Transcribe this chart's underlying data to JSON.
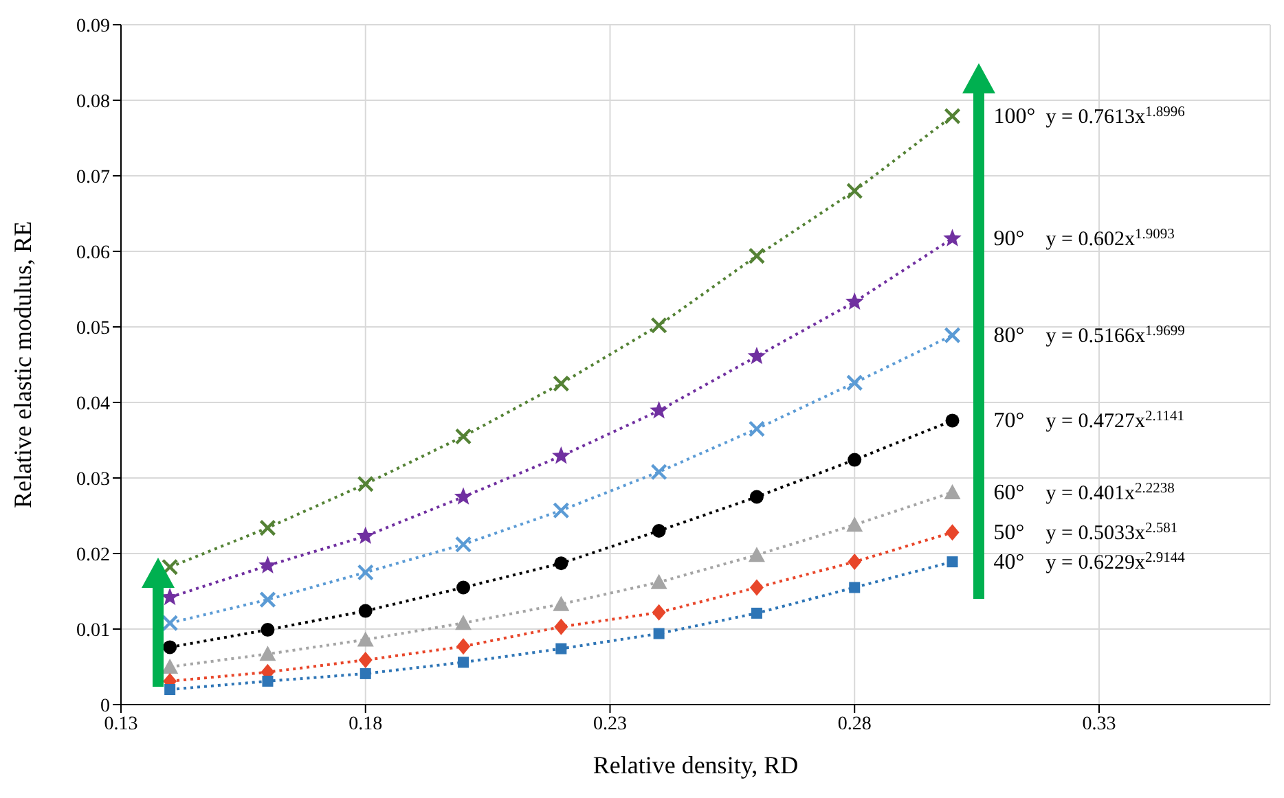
{
  "chart_data": {
    "type": "line",
    "xlabel": "Relative density, RD",
    "ylabel": "Relative elastic modulus, RE",
    "x": [
      0.14,
      0.16,
      0.18,
      0.2,
      0.22,
      0.24,
      0.26,
      0.28,
      0.3
    ],
    "series": [
      {
        "name": "100°",
        "color": "#548235",
        "marker": "cross",
        "values": [
          0.0182,
          0.0234,
          0.0292,
          0.0355,
          0.0425,
          0.0502,
          0.0594,
          0.068,
          0.0779
        ]
      },
      {
        "name": "90°",
        "color": "#7030a0",
        "marker": "star",
        "values": [
          0.0142,
          0.0184,
          0.0223,
          0.0275,
          0.0329,
          0.0389,
          0.0461,
          0.0533,
          0.0617
        ]
      },
      {
        "name": "80°",
        "color": "#5b9bd5",
        "marker": "cross",
        "values": [
          0.0108,
          0.0139,
          0.0175,
          0.0212,
          0.0257,
          0.0308,
          0.0365,
          0.0426,
          0.0489
        ]
      },
      {
        "name": "70°",
        "color": "#000000",
        "marker": "circle",
        "values": [
          0.0076,
          0.0099,
          0.0124,
          0.0155,
          0.0187,
          0.023,
          0.0275,
          0.0324,
          0.0376
        ]
      },
      {
        "name": "60°",
        "color": "#a5a5a5",
        "marker": "triangle",
        "values": [
          0.005,
          0.0067,
          0.0086,
          0.0108,
          0.0133,
          0.0162,
          0.0198,
          0.0238,
          0.0281
        ]
      },
      {
        "name": "50°",
        "color": "#e8462a",
        "marker": "diamond",
        "values": [
          0.0031,
          0.0043,
          0.0059,
          0.0077,
          0.0103,
          0.0122,
          0.0155,
          0.0189,
          0.0228
        ]
      },
      {
        "name": "40°",
        "color": "#2e75b6",
        "marker": "square",
        "values": [
          0.002,
          0.0031,
          0.0041,
          0.0056,
          0.0074,
          0.0094,
          0.0121,
          0.0155,
          0.0189
        ]
      }
    ],
    "annotations": [
      "y = 0.7613x$^{1.8996}$",
      "y = 0.602x$^{1.9093}$",
      "y = 0.5166x$^{1.9699}$",
      "y = 0.4727x$^{2.1141}$",
      "y = 0.401x$^{2.2238}$",
      "y = 0.5033x$^{2.581}$",
      "y = 0.6229x$^{2.9144}$"
    ],
    "xlim": [
      0.13,
      0.365
    ],
    "xticks": [
      0.13,
      0.18,
      0.23,
      0.28,
      0.33
    ],
    "ylim": [
      0,
      0.09
    ],
    "yticks": [
      0,
      0.01,
      0.02,
      0.03,
      0.04,
      0.05,
      0.06,
      0.07,
      0.08,
      0.09
    ],
    "grid": true,
    "line_style": "dotted"
  }
}
